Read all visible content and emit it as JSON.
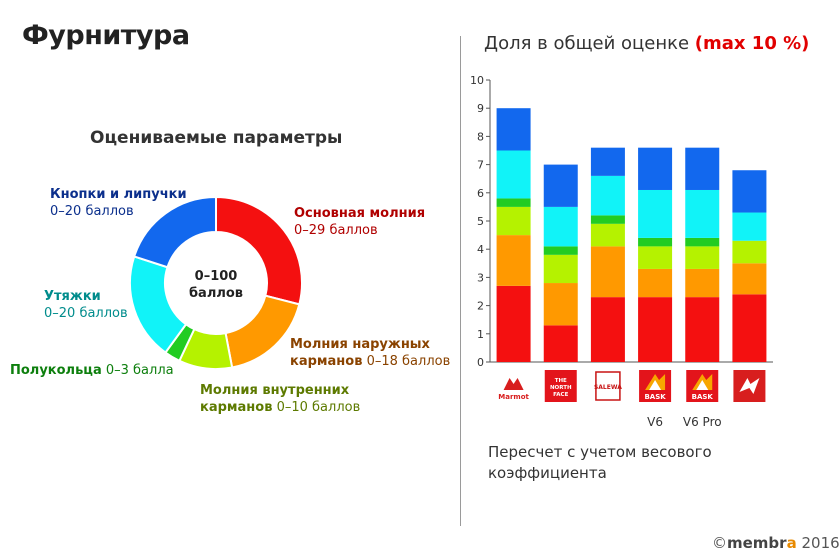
{
  "title": "Фурнитура",
  "donut": {
    "heading": "Оцениваемые параметры",
    "center_line1": "0–100",
    "center_line2": "баллов",
    "segments": [
      {
        "name": "Основная молния",
        "range": "0–29 баллов",
        "value": 29,
        "color": "#f41010",
        "label_color": "#b00000"
      },
      {
        "name": "Молния наружных карманов",
        "name_line1": "Молния наружных",
        "name_line2": "карманов",
        "range": "0–18 баллов",
        "value": 18,
        "color": "#ff9900",
        "label_color": "#8a4300"
      },
      {
        "name": "Молния внутренних карманов",
        "name_line1": "Молния внутренних",
        "name_line2": "карманов",
        "range": "0–10 баллов",
        "value": 10,
        "color": "#b5f200",
        "label_color": "#5d7a00"
      },
      {
        "name": "Полукольца",
        "range": "0–3 балла",
        "value": 3,
        "color": "#22cc22",
        "label_color": "#0d7f0d"
      },
      {
        "name": "Утяжки",
        "range": "0–20 баллов",
        "value": 20,
        "color": "#11f3f8",
        "label_color": "#008c8c"
      },
      {
        "name": "Кнопки и липучки",
        "range": "0–20 баллов",
        "value": 20,
        "color": "#1268ee",
        "label_color": "#0b2f8c"
      }
    ]
  },
  "chart_heading": {
    "text": "Доля в общей оценке ",
    "emphasis": "(max 10 %)"
  },
  "chart_data": {
    "type": "bar",
    "stacked": true,
    "categories": [
      "Marmot",
      "The North Face",
      "Salewa",
      "BASK V6",
      "BASK V6 Pro",
      "Red Fox"
    ],
    "x_sublabels": [
      "",
      "",
      "",
      "V6",
      "V6 Pro",
      ""
    ],
    "ylim": [
      0,
      10
    ],
    "yticks": [
      0,
      1,
      2,
      3,
      4,
      5,
      6,
      7,
      8,
      9,
      10
    ],
    "series": [
      {
        "color": "#f41010",
        "values": [
          2.7,
          1.3,
          2.3,
          2.3,
          2.3,
          2.4
        ]
      },
      {
        "color": "#ff9900",
        "values": [
          1.8,
          1.5,
          1.8,
          1.0,
          1.0,
          1.1
        ]
      },
      {
        "color": "#b5f200",
        "values": [
          1.0,
          1.0,
          0.8,
          0.8,
          0.8,
          0.8
        ]
      },
      {
        "color": "#22cc22",
        "values": [
          0.3,
          0.3,
          0.3,
          0.3,
          0.3,
          0.0
        ]
      },
      {
        "color": "#11f3f8",
        "values": [
          1.7,
          1.4,
          1.4,
          1.7,
          1.7,
          1.0
        ]
      },
      {
        "color": "#1268ee",
        "values": [
          1.5,
          1.5,
          1.0,
          1.5,
          1.5,
          1.5
        ]
      }
    ]
  },
  "logos": [
    {
      "icon": "marmot-logo",
      "text": "Marmot",
      "bg": "#ffffff",
      "fg": "#d81e1e"
    },
    {
      "icon": "north-face-logo",
      "text": "THE NORTH FACE",
      "bg": "#e3141b",
      "fg": "#ffffff"
    },
    {
      "icon": "salewa-logo",
      "text": "SALEWA",
      "bg": "#ffffff",
      "fg": "#c81414"
    },
    {
      "icon": "bask-logo",
      "text": "BASK",
      "bg": "#e3141b",
      "fg": "#ffffff",
      "accent": "#f7a600"
    },
    {
      "icon": "bask-logo",
      "text": "BASK",
      "bg": "#e3141b",
      "fg": "#ffffff",
      "accent": "#f7a600"
    },
    {
      "icon": "redfox-logo",
      "text": "",
      "bg": "#d81e1e",
      "fg": "#ffffff"
    }
  ],
  "note": "Пересчет с учетом весового коэффициента",
  "footer": {
    "copyright": "©",
    "brand": "membr",
    "brand_tail": "a",
    "year": "2016"
  }
}
